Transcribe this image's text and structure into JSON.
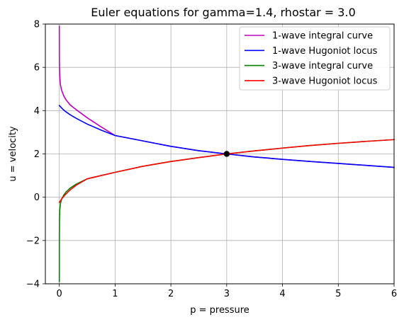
{
  "chart_data": {
    "type": "line",
    "title": "Euler equations for gamma=1.4, rhostar = 3.0",
    "xlabel": "p = pressure",
    "ylabel": "u = velocity",
    "xlim": [
      -0.25,
      6
    ],
    "ylim": [
      -4,
      8
    ],
    "xticks": [
      0,
      1,
      2,
      3,
      4,
      5,
      6
    ],
    "yticks": [
      -4,
      -2,
      0,
      2,
      4,
      6,
      8
    ],
    "xtick_labels": [
      "0",
      "1",
      "2",
      "3",
      "4",
      "5",
      "6"
    ],
    "ytick_labels": [
      "−4",
      "−2",
      "0",
      "2",
      "4",
      "6",
      "8"
    ],
    "grid": true,
    "legend_position": "top-right",
    "series": [
      {
        "name": "1-wave integral curve",
        "color": "#bf00bf",
        "points": [
          [
            0.0,
            7.9
          ],
          [
            0.0002,
            7.2
          ],
          [
            0.0005,
            6.8
          ],
          [
            0.001,
            6.5
          ],
          [
            0.003,
            6.0
          ],
          [
            0.008,
            5.6
          ],
          [
            0.02,
            5.2
          ],
          [
            0.04,
            4.95
          ],
          [
            0.08,
            4.68
          ],
          [
            0.12,
            4.5
          ],
          [
            0.2,
            4.25
          ],
          [
            0.3,
            4.05
          ],
          [
            0.5,
            3.67
          ],
          [
            0.75,
            3.25
          ],
          [
            1.0,
            2.85
          ],
          [
            1.5,
            2.6
          ],
          [
            2.0,
            2.35
          ],
          [
            2.5,
            2.15
          ],
          [
            3.0,
            2.0
          ],
          [
            3.5,
            1.86
          ],
          [
            4.0,
            1.75
          ],
          [
            4.5,
            1.65
          ],
          [
            5.0,
            1.56
          ],
          [
            5.5,
            1.47
          ],
          [
            6.0,
            1.38
          ]
        ]
      },
      {
        "name": "1-wave Hugoniot locus",
        "color": "#0000ff",
        "points": [
          [
            0.0,
            4.24
          ],
          [
            0.05,
            4.1
          ],
          [
            0.1,
            3.98
          ],
          [
            0.2,
            3.8
          ],
          [
            0.3,
            3.65
          ],
          [
            0.5,
            3.38
          ],
          [
            0.75,
            3.1
          ],
          [
            1.0,
            2.85
          ],
          [
            1.5,
            2.6
          ],
          [
            2.0,
            2.35
          ],
          [
            2.5,
            2.15
          ],
          [
            3.0,
            2.0
          ],
          [
            3.5,
            1.86
          ],
          [
            4.0,
            1.75
          ],
          [
            4.5,
            1.65
          ],
          [
            5.0,
            1.56
          ],
          [
            5.5,
            1.47
          ],
          [
            6.0,
            1.38
          ]
        ]
      },
      {
        "name": "3-wave integral curve",
        "color": "#008000",
        "points": [
          [
            0.0,
            -3.9
          ],
          [
            0.0002,
            -3.0
          ],
          [
            0.0005,
            -2.3
          ],
          [
            0.001,
            -1.7
          ],
          [
            0.003,
            -1.0
          ],
          [
            0.008,
            -0.6
          ],
          [
            0.02,
            -0.3
          ],
          [
            0.04,
            -0.1
          ],
          [
            0.08,
            0.1
          ],
          [
            0.12,
            0.24
          ],
          [
            0.2,
            0.43
          ],
          [
            0.3,
            0.6
          ],
          [
            0.5,
            0.85
          ],
          [
            0.75,
            1.0
          ],
          [
            1.0,
            1.15
          ],
          [
            1.5,
            1.43
          ],
          [
            2.0,
            1.65
          ],
          [
            2.5,
            1.83
          ],
          [
            3.0,
            2.0
          ],
          [
            3.5,
            2.14
          ],
          [
            4.0,
            2.27
          ],
          [
            4.5,
            2.39
          ],
          [
            5.0,
            2.49
          ],
          [
            5.5,
            2.58
          ],
          [
            6.0,
            2.66
          ]
        ]
      },
      {
        "name": "3-wave Hugoniot locus",
        "color": "#ff0000",
        "points": [
          [
            0.0,
            -0.24
          ],
          [
            0.05,
            -0.05
          ],
          [
            0.1,
            0.1
          ],
          [
            0.2,
            0.35
          ],
          [
            0.3,
            0.55
          ],
          [
            0.5,
            0.85
          ],
          [
            0.75,
            1.0
          ],
          [
            1.0,
            1.15
          ],
          [
            1.5,
            1.43
          ],
          [
            2.0,
            1.65
          ],
          [
            2.5,
            1.83
          ],
          [
            3.0,
            2.0
          ],
          [
            3.5,
            2.14
          ],
          [
            4.0,
            2.27
          ],
          [
            4.5,
            2.39
          ],
          [
            5.0,
            2.49
          ],
          [
            5.5,
            2.58
          ],
          [
            6.0,
            2.66
          ]
        ]
      }
    ],
    "marker": {
      "x": 3,
      "y": 2,
      "color": "#000000"
    }
  }
}
